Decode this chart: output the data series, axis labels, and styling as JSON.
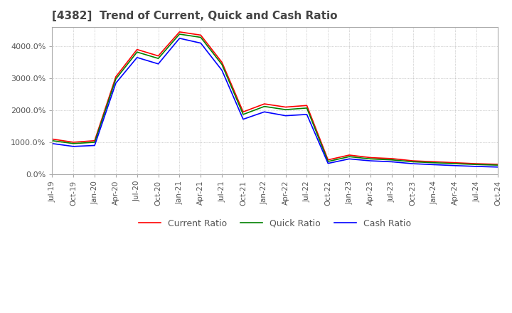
{
  "title": "[4382]  Trend of Current, Quick and Cash Ratio",
  "title_fontsize": 11,
  "background_color": "#ffffff",
  "grid_color": "#aaaaaa",
  "x_labels": [
    "Jul-19",
    "Oct-19",
    "Jan-20",
    "Apr-20",
    "Jul-20",
    "Oct-20",
    "Jan-21",
    "Apr-21",
    "Jul-21",
    "Oct-21",
    "Jan-22",
    "Apr-22",
    "Jul-22",
    "Oct-22",
    "Jan-23",
    "Apr-23",
    "Jul-23",
    "Oct-23",
    "Jan-24",
    "Apr-24",
    "Jul-24",
    "Oct-24"
  ],
  "current_ratio": [
    1100,
    1000,
    1050,
    3050,
    3900,
    3700,
    4450,
    4350,
    3500,
    1950,
    2200,
    2100,
    2150,
    450,
    600,
    520,
    490,
    420,
    390,
    360,
    330,
    310
  ],
  "quick_ratio": [
    1050,
    960,
    1000,
    2980,
    3820,
    3620,
    4380,
    4280,
    3430,
    1870,
    2120,
    2020,
    2070,
    400,
    550,
    480,
    450,
    390,
    360,
    330,
    305,
    285
  ],
  "cash_ratio": [
    960,
    870,
    900,
    2850,
    3650,
    3450,
    4250,
    4100,
    3250,
    1720,
    1950,
    1830,
    1870,
    340,
    480,
    420,
    390,
    330,
    300,
    270,
    245,
    225
  ],
  "current_color": "#ff0000",
  "quick_color": "#008000",
  "cash_color": "#0000ff",
  "ylim": [
    0,
    4600
  ],
  "yticks": [
    0,
    1000,
    2000,
    3000,
    4000
  ],
  "legend_labels": [
    "Current Ratio",
    "Quick Ratio",
    "Cash Ratio"
  ]
}
